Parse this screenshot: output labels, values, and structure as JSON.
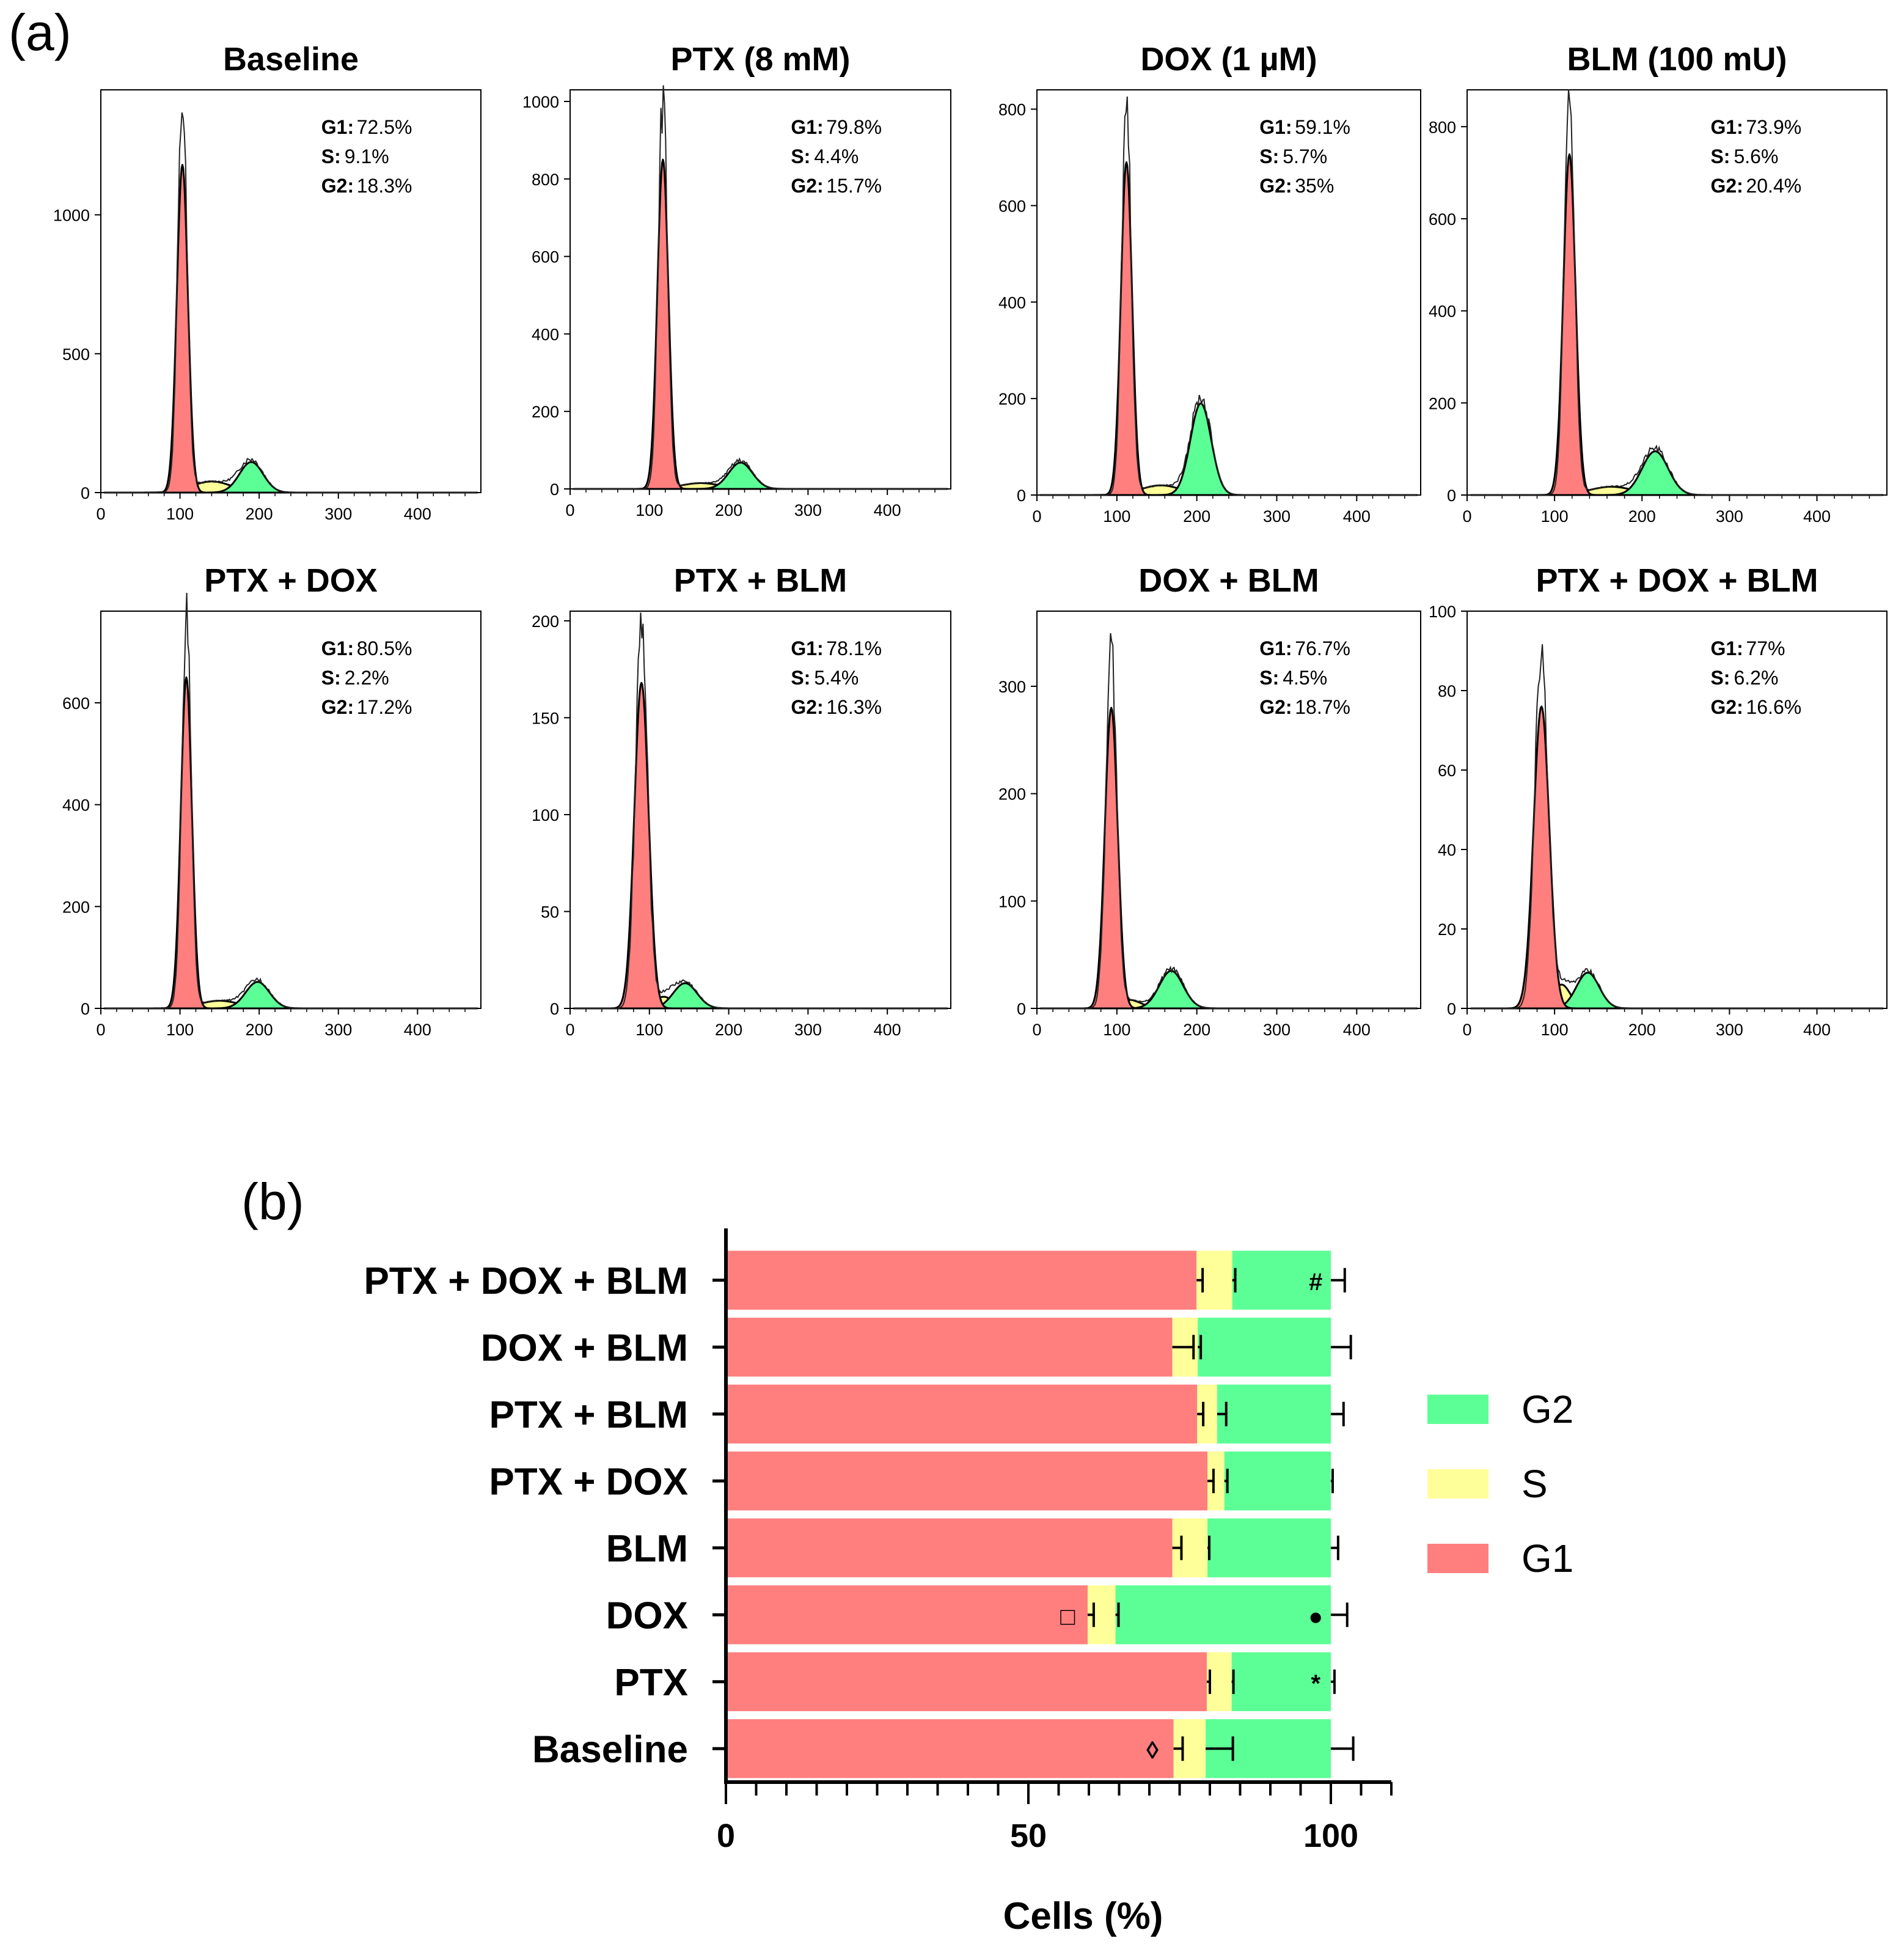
{
  "labels": {
    "panel_a": "(a)",
    "panel_b": "(b)"
  },
  "colors": {
    "g1": "#ff7f7f",
    "s": "#ffff99",
    "g2": "#5cff96",
    "debris": "#c8c8c8"
  },
  "chart_data": [
    {
      "type": "histogram",
      "panel": "a",
      "xlim": [
        0,
        480
      ],
      "xticks": [
        0,
        100,
        200,
        300,
        400
      ],
      "stat_keys": [
        "G1:",
        "S:",
        "G2:"
      ],
      "histograms": [
        {
          "title": "Baseline",
          "ymax": 1450,
          "yticks": [
            0,
            500,
            1000
          ],
          "stats": [
            "72.5%",
            "9.1%",
            "18.3%"
          ],
          "g1": {
            "center": 103,
            "peak": 1180,
            "width": 7
          },
          "s": {
            "center": 140,
            "peak": 40,
            "width": 25
          },
          "g2": {
            "center": 190,
            "peak": 110,
            "width": 15
          }
        },
        {
          "title": "PTX (8 mM)",
          "ymax": 1030,
          "yticks": [
            0,
            200,
            400,
            600,
            800,
            1000
          ],
          "stats": [
            "79.8%",
            "4.4%",
            "15.7%"
          ],
          "g1": {
            "center": 117,
            "peak": 850,
            "width": 7
          },
          "s": {
            "center": 165,
            "peak": 15,
            "width": 25
          },
          "g2": {
            "center": 215,
            "peak": 68,
            "width": 15
          }
        },
        {
          "title": "DOX (1 µM)",
          "ymax": 840,
          "yticks": [
            0,
            200,
            400,
            600,
            800
          ],
          "stats": [
            "59.1%",
            "5.7%",
            "35%"
          ],
          "g1": {
            "center": 112,
            "peak": 690,
            "width": 7
          },
          "s": {
            "center": 155,
            "peak": 20,
            "width": 25
          },
          "g2": {
            "center": 205,
            "peak": 190,
            "width": 13
          }
        },
        {
          "title": "BLM (100 mU)",
          "ymax": 880,
          "yticks": [
            0,
            200,
            400,
            600,
            800
          ],
          "stats": [
            "73.9%",
            "5.6%",
            "20.4%"
          ],
          "g1": {
            "center": 117,
            "peak": 740,
            "width": 7
          },
          "s": {
            "center": 165,
            "peak": 18,
            "width": 25
          },
          "g2": {
            "center": 215,
            "peak": 95,
            "width": 15
          }
        },
        {
          "title": "PTX + DOX",
          "ymax": 780,
          "yticks": [
            0,
            200,
            400,
            600
          ],
          "stats": [
            "80.5%",
            "2.2%",
            "17.2%"
          ],
          "g1": {
            "center": 108,
            "peak": 650,
            "width": 7
          },
          "s": {
            "center": 150,
            "peak": 15,
            "width": 25
          },
          "g2": {
            "center": 198,
            "peak": 52,
            "width": 15
          }
        },
        {
          "title": "PTX + BLM",
          "ymax": 205,
          "yticks": [
            0,
            50,
            100,
            150,
            200
          ],
          "stats": [
            "78.1%",
            "5.4%",
            "16.3%"
          ],
          "g1": {
            "center": 90,
            "peak": 168,
            "width": 9
          },
          "s": {
            "center": 118,
            "peak": 6,
            "width": 12
          },
          "g2": {
            "center": 145,
            "peak": 13,
            "width": 15
          }
        },
        {
          "title": "DOX + BLM",
          "ymax": 370,
          "yticks": [
            0,
            100,
            200,
            300
          ],
          "stats": [
            "76.7%",
            "4.5%",
            "18.7%"
          ],
          "g1": {
            "center": 93,
            "peak": 280,
            "width": 8
          },
          "s": {
            "center": 115,
            "peak": 8,
            "width": 15
          },
          "g2": {
            "center": 168,
            "peak": 35,
            "width": 15
          }
        },
        {
          "title": "PTX + DOX + BLM",
          "ymax": 100,
          "yticks": [
            0,
            20,
            40,
            60,
            80,
            100
          ],
          "stats": [
            "77%",
            "6.2%",
            "16.6%"
          ],
          "g1": {
            "center": 85,
            "peak": 76,
            "width": 9
          },
          "s": {
            "center": 108,
            "peak": 6,
            "width": 10
          },
          "g2": {
            "center": 138,
            "peak": 9,
            "width": 13
          }
        }
      ]
    },
    {
      "type": "bar",
      "panel": "b",
      "orientation": "horizontal-stacked",
      "xlabel": "Cells (%)",
      "xlim": [
        0,
        110
      ],
      "xticks": [
        0,
        50,
        100
      ],
      "categories": [
        "PTX + DOX + BLM",
        "DOX + BLM",
        "PTX + BLM",
        "PTX + DOX",
        "BLM",
        "DOX",
        "PTX",
        "Baseline"
      ],
      "series": [
        {
          "name": "G1",
          "values": [
            77.8,
            73.8,
            77.9,
            79.6,
            73.8,
            59.8,
            79.5,
            74.0
          ],
          "errors": [
            1.0,
            3.5,
            1.0,
            1.0,
            1.5,
            1.0,
            0.5,
            1.5
          ]
        },
        {
          "name": "S",
          "values": [
            5.9,
            4.2,
            3.3,
            2.8,
            5.8,
            4.6,
            4.1,
            5.3
          ],
          "errors": [
            0.5,
            0.5,
            1.5,
            0.5,
            0.3,
            0.5,
            0.3,
            4.5
          ]
        },
        {
          "name": "G2",
          "values": [
            16.3,
            22.0,
            18.8,
            17.6,
            20.4,
            35.6,
            16.4,
            20.7
          ],
          "errors": [
            2.3,
            3.3,
            2.1,
            0.3,
            1.2,
            2.7,
            0.6,
            3.7
          ]
        }
      ],
      "legend": [
        "G2",
        "S",
        "G1"
      ],
      "annotations": [
        {
          "category": "PTX + DOX + BLM",
          "symbol": "#",
          "x": 97.5
        },
        {
          "category": "DOX",
          "symbol": "□",
          "x": 56.5
        },
        {
          "category": "DOX",
          "symbol": "●",
          "x": 97.5
        },
        {
          "category": "PTX",
          "symbol": "*",
          "x": 97.5
        },
        {
          "category": "Baseline",
          "symbol": "◊",
          "x": 70.5
        }
      ]
    }
  ]
}
